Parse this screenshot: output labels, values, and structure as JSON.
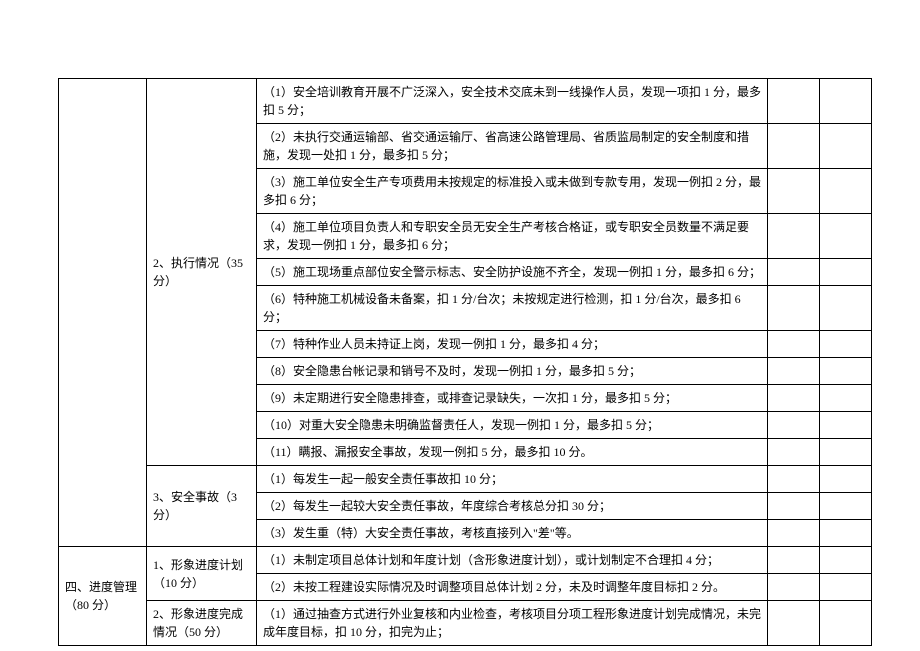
{
  "section3": {
    "sub2": {
      "label": "2、执行情况（35 分）",
      "items": [
        "（1）安全培训教育开展不广泛深入，安全技术交底未到一线操作人员，发现一项扣 1 分，最多扣 5 分；",
        "（2）未执行交通运输部、省交通运输厅、省高速公路管理局、省质监局制定的安全制度和措施，发现一处扣 1 分，最多扣 5 分；",
        "（3）施工单位安全生产专项费用未按规定的标准投入或未做到专款专用，发现一例扣 2 分，最多扣 6 分；",
        "（4）施工单位项目负责人和专职安全员无安全生产考核合格证，或专职安全员数量不满足要求，发现一例扣 1 分，最多扣 6 分；",
        "（5）施工现场重点部位安全警示标志、安全防护设施不齐全，发现一例扣 1 分，最多扣 6 分；",
        "（6）特种施工机械设备未备案，扣 1 分/台次；未按规定进行检测，扣 1 分/台次，最多扣 6 分；",
        "（7）特种作业人员未持证上岗，发现一例扣 1 分，最多扣 4 分；",
        "（8）安全隐患台帐记录和销号不及时，发现一例扣 1 分，最多扣 5 分；",
        "（9）未定期进行安全隐患排查，或排查记录缺失，一次扣 1 分，最多扣 5 分；",
        "（10）对重大安全隐患未明确监督责任人，发现一例扣 1 分，最多扣 5 分；",
        "（11）瞒报、漏报安全事故，发现一例扣 5 分，最多扣 10 分。"
      ]
    },
    "sub3": {
      "label": "3、安全事故（3 分）",
      "items": [
        "（1）每发生一起一般安全责任事故扣 10 分；",
        "（2）每发生一起较大安全责任事故，年度综合考核总分扣 30 分；",
        "（3）发生重（特）大安全责任事故，考核直接列入\"差\"等。"
      ]
    }
  },
  "section4": {
    "label": "四、进度管理（80 分）",
    "sub1": {
      "label": "1、形象进度计划（10 分）",
      "items": [
        "（1）未制定项目总体计划和年度计划（含形象进度计划），或计划制定不合理扣 4 分；",
        "（2）未按工程建设实际情况及时调整项目总体计划 2 分，未及时调整年度目标扣 2 分。"
      ]
    },
    "sub2": {
      "label": "2、形象进度完成情况（50 分）",
      "items": [
        "（1）通过抽查方式进行外业复核和内业检查，考核项目分项工程形象进度计划完成情况，未完成年度目标，扣 10 分，扣完为止；"
      ]
    }
  }
}
